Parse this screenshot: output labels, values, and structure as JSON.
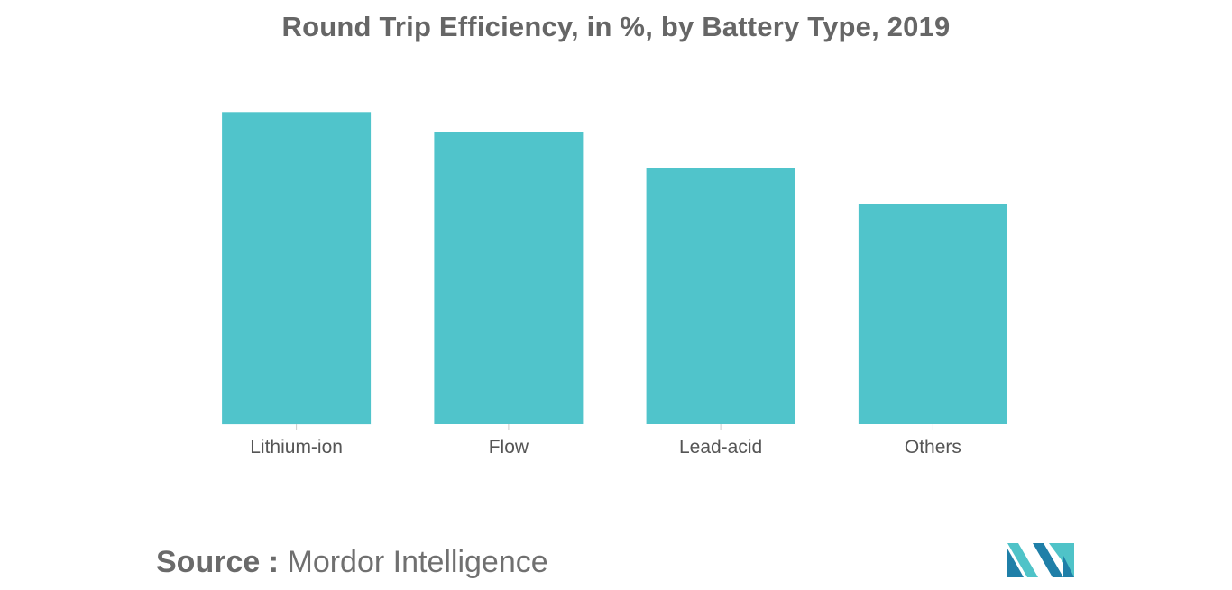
{
  "title": "Round Trip Efficiency, in %, by Battery Type, 2019",
  "source": {
    "label": "Source :",
    "value": "Mordor Intelligence"
  },
  "colors": {
    "bar": "#50C4CB",
    "text": "#666666",
    "axis_tick": "#cccccc",
    "logo_dark": "#1F7FA8",
    "logo_light": "#4FC3C8"
  },
  "icons": {
    "logo": "mordor-intelligence-logo"
  },
  "chart_data": {
    "type": "bar",
    "title": "Round Trip Efficiency, in %, by Battery Type, 2019",
    "categories": [
      "Lithium-ion",
      "Flow",
      "Lead-acid",
      "Others"
    ],
    "values": [
      95,
      89,
      78,
      67
    ],
    "xlabel": "",
    "ylabel": "",
    "ylim": [
      0,
      100
    ],
    "grid": false,
    "legend": "none"
  }
}
